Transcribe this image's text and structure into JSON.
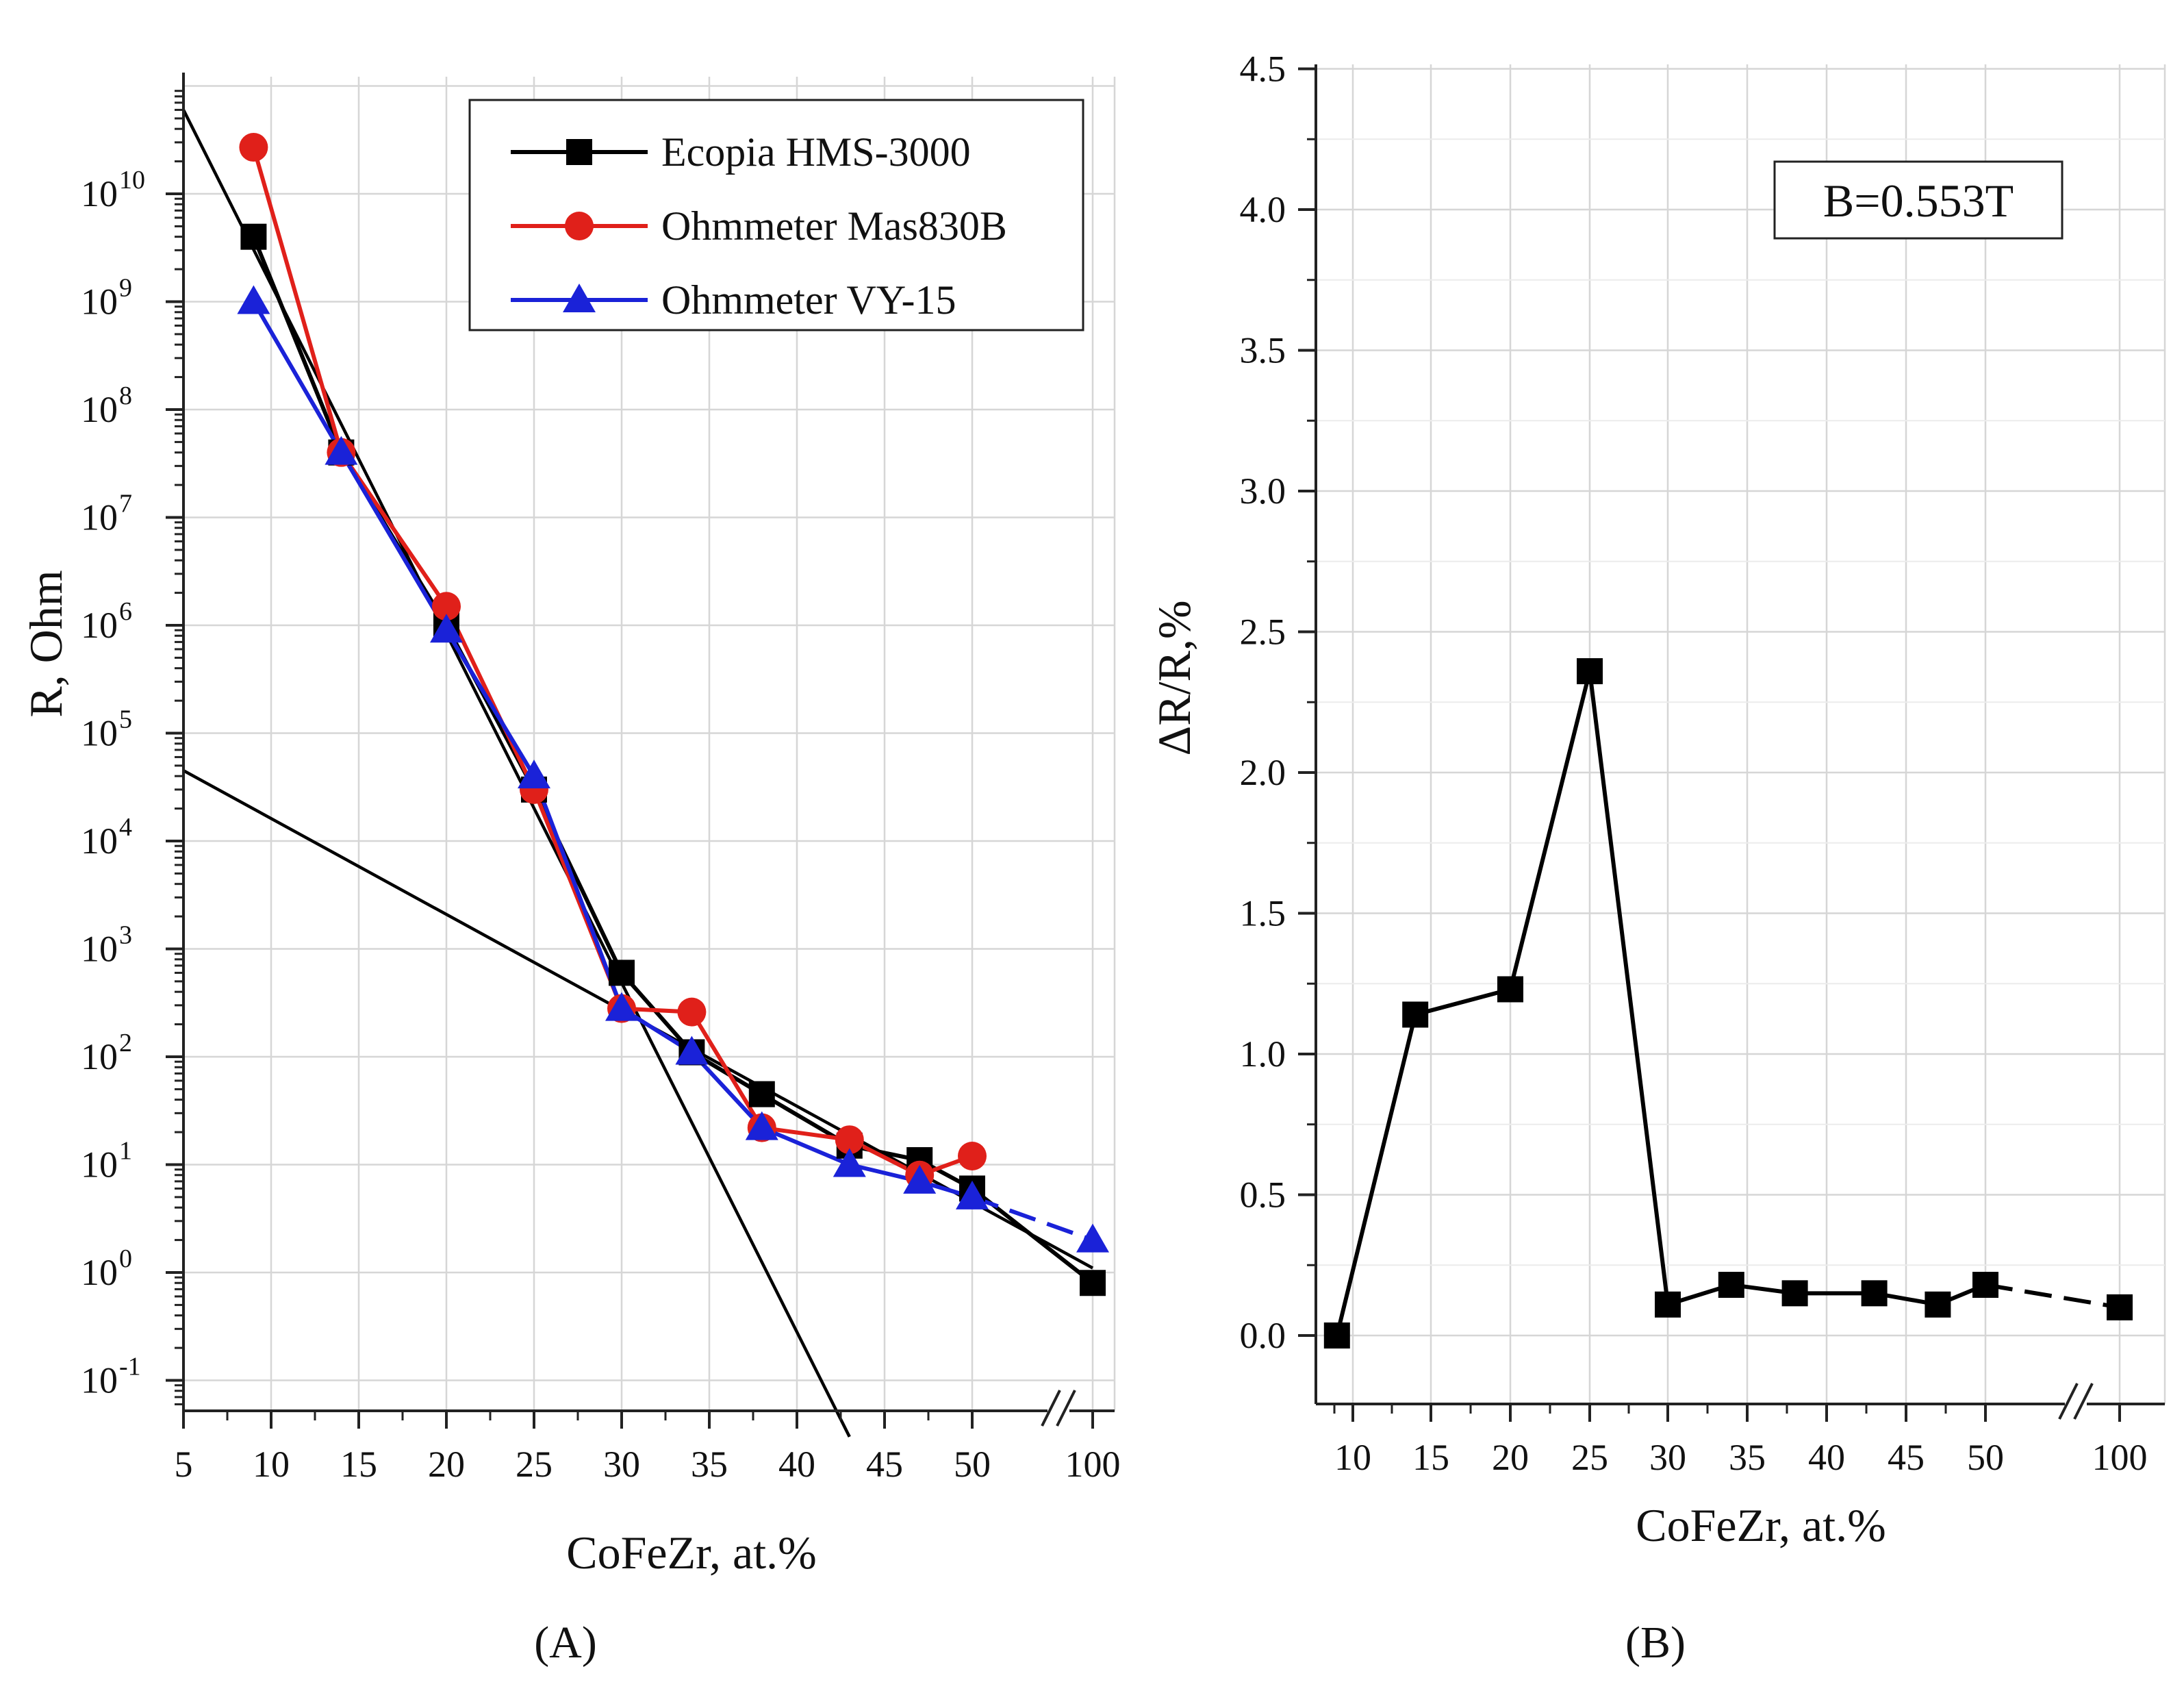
{
  "chart_data": [
    {
      "panel": "A",
      "type": "line",
      "yscale": "log",
      "xlabel": "CoFeZr, at.%",
      "ylabel": "R, Ohm",
      "x_ticks": [
        "5",
        "10",
        "15",
        "20",
        "25",
        "30",
        "35",
        "40",
        "45",
        "50",
        "100"
      ],
      "x_break_between": [
        "50",
        "100"
      ],
      "ylim": [
        0.03,
        100000000000
      ],
      "y_ticks": [
        {
          "exp": "-1",
          "value": 0.1
        },
        {
          "exp": "0",
          "value": 1
        },
        {
          "exp": "1",
          "value": 10
        },
        {
          "exp": "2",
          "value": 100
        },
        {
          "exp": "3",
          "value": 1000
        },
        {
          "exp": "4",
          "value": 10000
        },
        {
          "exp": "5",
          "value": 100000
        },
        {
          "exp": "6",
          "value": 1000000
        },
        {
          "exp": "7",
          "value": 10000000
        },
        {
          "exp": "8",
          "value": 100000000
        },
        {
          "exp": "9",
          "value": 1000000000
        },
        {
          "exp": "10",
          "value": 10000000000
        }
      ],
      "series": [
        {
          "name": "Ecopia HMS-3000",
          "color": "#000000",
          "marker": "square",
          "x": [
            9,
            14,
            20,
            25,
            30,
            34,
            38,
            43,
            47,
            50,
            100
          ],
          "values": [
            4000000000,
            40000000,
            1000000,
            30000,
            600,
            110,
            45,
            15,
            11,
            6,
            0.8
          ]
        },
        {
          "name": "Ohmmeter Mas830B",
          "color": "#e0201a",
          "marker": "circle",
          "x": [
            9,
            14,
            20,
            25,
            30,
            34,
            38,
            43,
            47,
            50
          ],
          "values": [
            27000000000,
            40000000,
            1500000,
            30000,
            280,
            260,
            22,
            17,
            8,
            12
          ]
        },
        {
          "name": "Ohmmeter VY-15",
          "color": "#1a22d8",
          "marker": "triangle",
          "x": [
            9,
            14,
            20,
            25,
            30,
            34,
            38,
            43,
            47,
            50,
            100
          ],
          "values": [
            1000000000,
            40000000,
            900000,
            40000,
            280,
            110,
            22,
            10,
            7,
            5,
            2
          ]
        }
      ],
      "fit_lines": [
        {
          "name": "steep fit",
          "color": "#000000",
          "points": [
            [
              5,
              60000000000
            ],
            [
              43,
              0.03
            ]
          ]
        },
        {
          "name": "shallow fit",
          "color": "#000000",
          "points": [
            [
              5,
              45000
            ],
            [
              100,
              1.1
            ]
          ]
        }
      ],
      "panel_label": "(A)"
    },
    {
      "panel": "B",
      "type": "line",
      "xlabel": "CoFeZr, at.%",
      "ylabel": "ΔR/R,%",
      "x_ticks": [
        "10",
        "15",
        "20",
        "25",
        "30",
        "35",
        "40",
        "45",
        "50",
        "100"
      ],
      "x_break_between": [
        "50",
        "100"
      ],
      "ylim": [
        -0.25,
        4.5
      ],
      "y_ticks": [
        "0.0",
        "0.5",
        "1.0",
        "1.5",
        "2.0",
        "2.5",
        "3.0",
        "3.5",
        "4.0",
        "4.5"
      ],
      "series": [
        {
          "name": "ΔR/R",
          "color": "#000000",
          "marker": "square",
          "x": [
            9,
            14,
            20,
            25,
            30,
            34,
            38,
            43,
            47,
            50,
            100
          ],
          "values": [
            0.0,
            1.14,
            1.23,
            2.36,
            0.11,
            0.18,
            0.15,
            0.15,
            0.11,
            0.18,
            0.1
          ]
        }
      ],
      "annotation": "B=0.553T",
      "panel_label": "(B)"
    }
  ]
}
